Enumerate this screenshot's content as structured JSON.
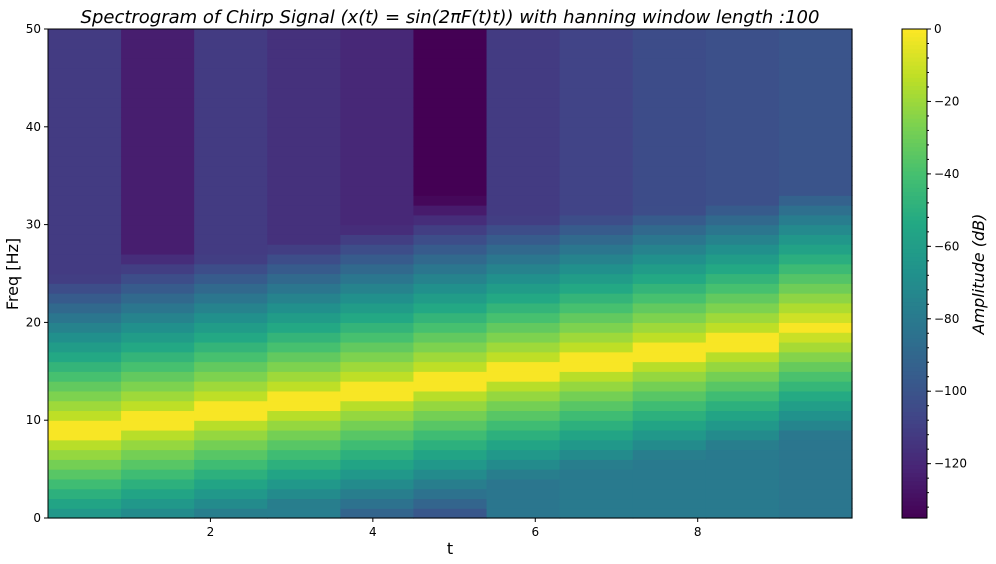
{
  "chart_data": {
    "type": "heatmap",
    "title": "Spectrogram of Chirp Signal (x(t) = sin(2πF(t)t)) with hanning window length :100",
    "xlabel": "t",
    "ylabel": "Freq [Hz]",
    "colorbar_label": "Amplitude (dB)",
    "colormap": "viridis",
    "x_edges": [
      0.0,
      0.9,
      1.8,
      2.7,
      3.6,
      4.5,
      5.4,
      6.3,
      7.2,
      8.1,
      9.0,
      9.9
    ],
    "time_centers": [
      0.5,
      1.4,
      2.3,
      3.2,
      4.1,
      5.0,
      5.9,
      6.8,
      7.7,
      8.6,
      9.5
    ],
    "peak_freq_hz": [
      9,
      10,
      11,
      12,
      13,
      14,
      15,
      16,
      17,
      18,
      19.5
    ],
    "top_level_db": [
      -112,
      -124,
      -112,
      -116,
      -120,
      -136,
      -112,
      -108,
      -104,
      -102,
      -100
    ],
    "bottom_level_db": [
      -76,
      -92,
      -80,
      -78,
      -95,
      -100,
      -82,
      -80,
      -80,
      -80,
      -82
    ],
    "freq_bin_hz": 1,
    "xlim": [
      0.0,
      9.9
    ],
    "ylim": [
      0,
      50
    ],
    "clim": [
      -135,
      0
    ],
    "x_ticks": [
      2,
      4,
      6,
      8
    ],
    "y_ticks": [
      0,
      10,
      20,
      30,
      40,
      50
    ],
    "cbar_ticks": [
      0,
      -20,
      -40,
      -60,
      -80,
      -100,
      -120
    ],
    "x_tick_labels": [
      "2",
      "4",
      "6",
      "8"
    ],
    "y_tick_labels": [
      "0",
      "10",
      "20",
      "30",
      "40",
      "50"
    ],
    "cbar_tick_labels": [
      "0",
      "−20",
      "−40",
      "−60",
      "−80",
      "−100",
      "−120"
    ]
  }
}
